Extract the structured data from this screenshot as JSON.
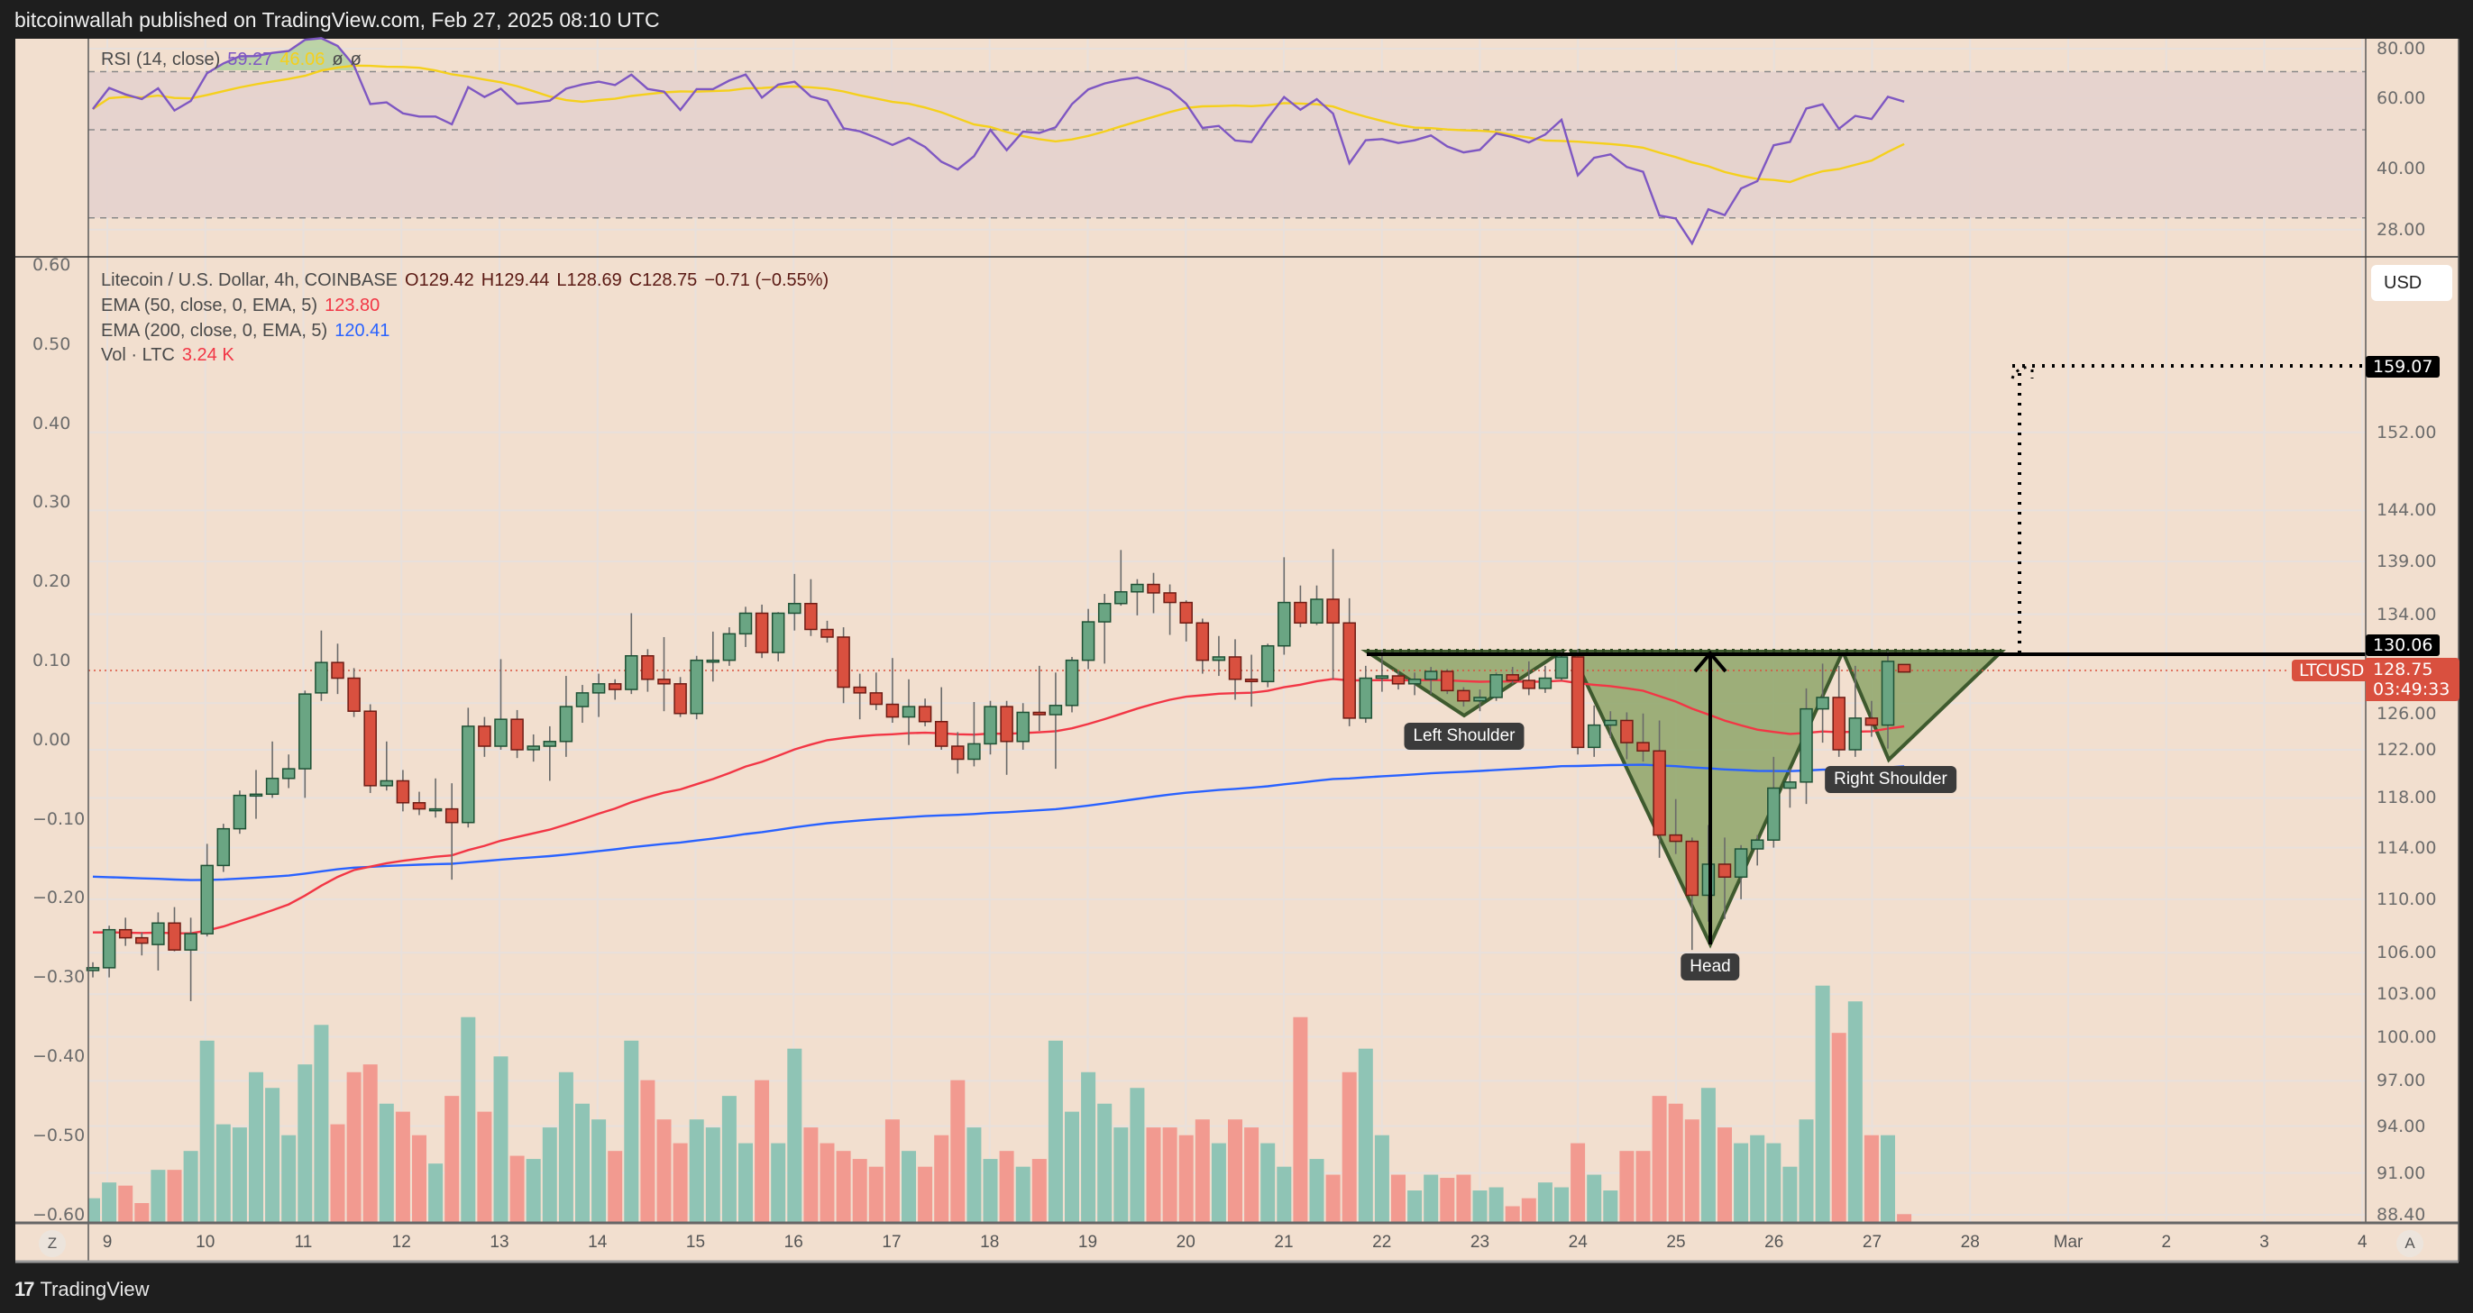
{
  "header": {
    "title": "bitcoinwallah published on TradingView.com, Feb 27, 2025 08:10 UTC"
  },
  "rsi_legend": {
    "label": "RSI (14, close)",
    "rsi_value": "59.27",
    "ma_value": "46.06",
    "extra1": "ø",
    "extra2": "ø"
  },
  "legend": {
    "symbol": "Litecoin / U.S. Dollar, 4h, COINBASE",
    "open": "O129.42",
    "high": "H129.44",
    "low": "L128.69",
    "close": "C128.75",
    "change": "−0.71 (−0.55%)",
    "ema50_label": "EMA (50, close, 0, EMA, 5)",
    "ema50_value": "123.80",
    "ema200_label": "EMA (200, close, 0, EMA, 5)",
    "ema200_value": "120.41",
    "vol_label": "Vol · LTC",
    "vol_value": "3.24 K"
  },
  "currency": "USD",
  "tags": {
    "target": "159.07",
    "neckline": "130.06",
    "symbol": "LTCUSD",
    "last_price": "128.75",
    "countdown": "03:49:33"
  },
  "pattern_labels": {
    "left": "Left Shoulder",
    "head": "Head",
    "right": "Right Shoulder"
  },
  "buttons": {
    "zoom": "Z",
    "auto": "A"
  },
  "footer": {
    "logo_glyph": "17",
    "brand": "TradingView"
  },
  "colors": {
    "up": "#6aa583",
    "down": "#d9503f",
    "vol_up": "#8fc4b5",
    "vol_down": "#f29a90",
    "ema50": "#f23645",
    "ema200": "#2962ff",
    "rsi": "#7e57c2",
    "rsi_ma": "#f5d01c",
    "pattern_fill": "#8ea66a",
    "background": "#f2dfcf"
  },
  "chart_data": {
    "type": "candlestick",
    "symbol": "LTCUSD",
    "interval": "4h",
    "y_scale": "log",
    "price_ticks": [
      "152.00",
      "144.00",
      "139.00",
      "134.00",
      "126.00",
      "122.00",
      "118.00",
      "114.00",
      "110.00",
      "106.00",
      "103.00",
      "100.00",
      "97.00",
      "94.00",
      "91.00",
      "88.40"
    ],
    "rsi_ticks": [
      "80.00",
      "60.00",
      "40.00",
      "28.00"
    ],
    "left_ticks": [
      "0.60",
      "0.50",
      "0.40",
      "0.30",
      "0.20",
      "0.10",
      "0.00",
      "−0.10",
      "−0.20",
      "−0.30",
      "−0.40",
      "−0.50",
      "−0.60"
    ],
    "time_ticks": [
      "9",
      "10",
      "11",
      "12",
      "13",
      "14",
      "15",
      "16",
      "17",
      "18",
      "19",
      "20",
      "21",
      "22",
      "23",
      "24",
      "25",
      "26",
      "27",
      "28",
      "Mar",
      "2",
      "3",
      "4"
    ],
    "grid": true,
    "ohlc": [
      [
        104.7,
        105.3,
        104.2,
        104.9
      ],
      [
        104.9,
        108.0,
        104.2,
        107.7
      ],
      [
        107.7,
        108.6,
        106.5,
        107.1
      ],
      [
        107.1,
        107.5,
        105.8,
        106.7
      ],
      [
        106.6,
        109.0,
        104.7,
        108.2
      ],
      [
        108.2,
        109.4,
        106.1,
        106.2
      ],
      [
        106.2,
        108.6,
        102.5,
        107.4
      ],
      [
        107.4,
        114.3,
        107.2,
        112.6
      ],
      [
        112.6,
        115.9,
        112.1,
        115.5
      ],
      [
        115.5,
        118.6,
        115.1,
        118.2
      ],
      [
        118.2,
        120.3,
        116.3,
        118.3
      ],
      [
        118.3,
        122.7,
        118.0,
        119.6
      ],
      [
        119.6,
        121.6,
        118.8,
        120.4
      ],
      [
        120.4,
        127.1,
        118.0,
        126.8
      ],
      [
        126.9,
        132.5,
        126.2,
        129.6
      ],
      [
        129.6,
        131.3,
        126.8,
        128.2
      ],
      [
        128.2,
        129.1,
        124.8,
        125.3
      ],
      [
        125.3,
        125.9,
        118.4,
        119.0
      ],
      [
        119.0,
        122.7,
        118.6,
        119.4
      ],
      [
        119.4,
        120.3,
        116.9,
        117.6
      ],
      [
        117.6,
        118.5,
        116.6,
        117.1
      ],
      [
        117.1,
        119.6,
        116.4,
        117.1
      ],
      [
        117.1,
        119.2,
        111.5,
        116.0
      ],
      [
        116.0,
        125.6,
        115.6,
        124.0
      ],
      [
        124.0,
        124.8,
        121.4,
        122.3
      ],
      [
        122.3,
        129.9,
        122.0,
        124.6
      ],
      [
        124.6,
        125.4,
        121.3,
        122.0
      ],
      [
        122.0,
        123.3,
        121.0,
        122.3
      ],
      [
        122.3,
        124.0,
        119.4,
        122.7
      ],
      [
        122.7,
        128.4,
        121.4,
        125.7
      ],
      [
        125.7,
        127.6,
        124.3,
        126.9
      ],
      [
        126.9,
        128.6,
        124.8,
        127.7
      ],
      [
        127.7,
        128.1,
        126.3,
        127.2
      ],
      [
        127.2,
        134.1,
        126.8,
        130.2
      ],
      [
        130.2,
        130.8,
        127.0,
        128.1
      ],
      [
        128.1,
        131.9,
        125.3,
        127.7
      ],
      [
        127.7,
        128.3,
        124.8,
        125.1
      ],
      [
        125.1,
        130.2,
        124.6,
        129.8
      ],
      [
        129.8,
        132.4,
        127.9,
        129.8
      ],
      [
        129.8,
        132.8,
        129.3,
        132.2
      ],
      [
        132.2,
        134.7,
        131.0,
        134.1
      ],
      [
        134.1,
        134.9,
        130.0,
        130.5
      ],
      [
        130.5,
        134.2,
        129.7,
        134.1
      ],
      [
        134.1,
        137.8,
        132.5,
        135.0
      ],
      [
        135.0,
        137.3,
        132.0,
        132.6
      ],
      [
        132.6,
        133.4,
        131.4,
        131.9
      ],
      [
        131.9,
        132.8,
        126.0,
        127.4
      ],
      [
        127.4,
        128.6,
        124.6,
        126.9
      ],
      [
        126.9,
        128.7,
        125.4,
        125.9
      ],
      [
        125.9,
        130.0,
        124.3,
        124.8
      ],
      [
        124.8,
        128.1,
        122.4,
        125.7
      ],
      [
        125.7,
        126.4,
        124.0,
        124.4
      ],
      [
        124.4,
        127.4,
        122.0,
        122.3
      ],
      [
        122.3,
        123.5,
        120.0,
        121.2
      ],
      [
        121.2,
        126.1,
        120.6,
        122.5
      ],
      [
        122.5,
        126.2,
        121.6,
        125.7
      ],
      [
        125.7,
        126.2,
        119.9,
        122.7
      ],
      [
        122.7,
        126.0,
        122.0,
        125.2
      ],
      [
        125.2,
        129.3,
        123.6,
        125.0
      ],
      [
        125.0,
        128.7,
        120.4,
        125.8
      ],
      [
        125.8,
        130.1,
        125.2,
        129.8
      ],
      [
        129.8,
        134.5,
        129.0,
        133.3
      ],
      [
        133.3,
        135.9,
        129.5,
        135.0
      ],
      [
        135.0,
        140.1,
        134.8,
        136.1
      ],
      [
        136.1,
        137.3,
        133.9,
        136.8
      ],
      [
        136.8,
        137.9,
        134.1,
        136.0
      ],
      [
        136.0,
        136.8,
        132.1,
        135.1
      ],
      [
        135.1,
        135.3,
        131.5,
        133.2
      ],
      [
        133.2,
        133.6,
        128.6,
        129.8
      ],
      [
        129.8,
        132.0,
        128.4,
        130.1
      ],
      [
        130.1,
        131.7,
        126.3,
        128.1
      ],
      [
        128.1,
        130.3,
        125.7,
        127.9
      ],
      [
        127.9,
        131.3,
        127.4,
        131.1
      ],
      [
        131.1,
        139.4,
        130.3,
        135.1
      ],
      [
        135.1,
        136.7,
        132.8,
        133.2
      ],
      [
        133.2,
        136.7,
        133.0,
        135.4
      ],
      [
        135.4,
        140.2,
        128.1,
        133.2
      ],
      [
        133.2,
        135.5,
        124.0,
        124.7
      ],
      [
        124.7,
        129.3,
        124.3,
        128.2
      ],
      [
        128.2,
        130.7,
        127.0,
        128.4
      ],
      [
        128.4,
        128.8,
        127.2,
        127.7
      ],
      [
        127.7,
        128.7,
        126.7,
        128.1
      ],
      [
        128.1,
        129.2,
        126.8,
        128.8
      ],
      [
        128.8,
        129.0,
        126.8,
        127.1
      ],
      [
        127.1,
        127.4,
        125.7,
        126.2
      ],
      [
        126.2,
        127.2,
        125.3,
        126.5
      ],
      [
        126.5,
        128.7,
        126.2,
        128.5
      ],
      [
        128.5,
        129.2,
        127.7,
        128.0
      ],
      [
        128.0,
        129.7,
        126.7,
        127.3
      ],
      [
        127.3,
        129.3,
        126.9,
        128.2
      ],
      [
        128.2,
        130.6,
        128.0,
        130.1
      ],
      [
        130.1,
        130.8,
        121.6,
        122.2
      ],
      [
        122.2,
        125.8,
        121.4,
        124.1
      ],
      [
        124.1,
        125.3,
        123.0,
        124.5
      ],
      [
        124.5,
        125.2,
        121.2,
        122.6
      ],
      [
        122.6,
        125.1,
        121.0,
        121.9
      ],
      [
        121.9,
        124.5,
        113.2,
        115.0
      ],
      [
        115.0,
        117.9,
        113.5,
        114.5
      ],
      [
        114.5,
        114.8,
        106.2,
        110.3
      ],
      [
        110.3,
        115.8,
        108.3,
        112.7
      ],
      [
        112.7,
        114.8,
        108.5,
        111.7
      ],
      [
        111.7,
        114.2,
        110.0,
        113.9
      ],
      [
        113.9,
        115.0,
        112.6,
        114.6
      ],
      [
        114.6,
        121.4,
        114.0,
        118.8
      ],
      [
        118.8,
        120.4,
        117.2,
        119.3
      ],
      [
        119.3,
        127.3,
        117.5,
        125.5
      ],
      [
        125.5,
        129.5,
        122.6,
        126.5
      ],
      [
        126.5,
        129.3,
        121.4,
        122.0
      ],
      [
        122.0,
        129.3,
        121.4,
        124.7
      ],
      [
        124.7,
        126.2,
        123.1,
        124.1
      ],
      [
        124.1,
        130.6,
        122.1,
        129.7
      ],
      [
        129.42,
        129.44,
        128.69,
        128.75
      ]
    ],
    "volume_k": [
      9.8,
      16.3,
      15.0,
      7.8,
      21.5,
      21.5,
      29.3,
      74.8,
      40.3,
      39,
      61.8,
      55.3,
      35.8,
      65,
      81.3,
      40.3,
      61.8,
      65,
      48.8,
      45.5,
      35.8,
      24.1,
      52,
      84.5,
      45.5,
      68.3,
      27.3,
      26,
      39,
      61.8,
      48.8,
      42.3,
      29.3,
      74.8,
      58.5,
      42.3,
      32.5,
      42.3,
      39,
      52,
      32.5,
      58.5,
      32.5,
      71.5,
      39,
      32.5,
      29.3,
      26,
      22.8,
      42.3,
      29.3,
      22.8,
      35.8,
      58.5,
      39,
      26,
      29.3,
      22.8,
      26,
      74.8,
      45.5,
      61.8,
      48.8,
      39,
      55.3,
      39,
      39,
      35.8,
      42.3,
      32.5,
      42.3,
      39,
      32.5,
      22.8,
      84.5,
      26,
      19.5,
      61.8,
      71.5,
      35.8,
      19.5,
      13,
      19.5,
      18.2,
      19.5,
      13,
      14.3,
      6.5,
      9.8,
      16.3,
      14.3,
      32.5,
      19.5,
      13,
      29.3,
      29.3,
      52,
      48.8,
      42.3,
      55.3,
      39,
      32.5,
      35.8,
      32.5,
      22.8,
      42.3,
      97.5,
      78,
      91,
      35.8,
      35.8,
      3.24
    ],
    "indicators": {
      "ema_periods": [
        50,
        200
      ],
      "rsi_period": 14,
      "rsi_ma_period": 14,
      "rsi_bands": [
        70,
        50,
        30
      ]
    },
    "pattern": {
      "name_labels": [
        "Left Shoulder",
        "Head",
        "Right Shoulder"
      ],
      "neckline": 130.06,
      "target": 159.07
    }
  }
}
